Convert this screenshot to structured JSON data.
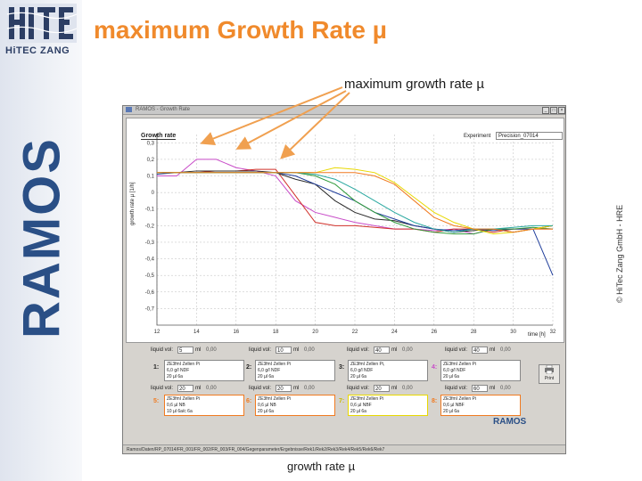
{
  "slide": {
    "title": "maximum Growth Rate µ",
    "annotation_top": "maximum growth rate µ",
    "annotation_bottom": "growth rate µ",
    "copyright": "© HiTec Zang GmbH - HRE",
    "logo_text": "HiTEC ZANG",
    "side_brand": "RAMOS",
    "title_color": "#f08a2c",
    "arrow_color": "#f0a050"
  },
  "app": {
    "window_title": "RAMOS - Growth Rate",
    "chart_tab_label": "Growth rate",
    "experiment_label": "Experiment",
    "experiment_value": "Precision_07014",
    "print_label": "Print",
    "app_logo": "RAMOS",
    "status_path": "Ramos/Daten/RP_07014/FR_001/FR_002/FR_003/FR_004/Gegenparameter/Ergebnisse/Rek1/Rek2/Rek3/Rek4/Rek5/Rek6/Rek7"
  },
  "controls": {
    "row1": [
      {
        "label": "liquid vol:",
        "value": "5",
        "unit": "ml",
        "num": "0,00"
      },
      {
        "label": "liquid vol:",
        "value": "10",
        "unit": "ml",
        "num": "0,00"
      },
      {
        "label": "liquid vol:",
        "value": "40",
        "unit": "ml",
        "num": "0,00"
      },
      {
        "label": "liquid vol:",
        "value": "40",
        "unit": "ml",
        "num": "0,00"
      }
    ],
    "row2": [
      {
        "label": "liquid vol:",
        "value": "20",
        "unit": "ml",
        "num": "0,00"
      },
      {
        "label": "liquid vol:",
        "value": "20",
        "unit": "ml",
        "num": "0,00"
      },
      {
        "label": "liquid vol:",
        "value": "20",
        "unit": "ml",
        "num": "0,00"
      },
      {
        "label": "liquid vol:",
        "value": "60",
        "unit": "ml",
        "num": "0,00"
      }
    ]
  },
  "cards": [
    {
      "idx": "1:",
      "color": "#1a1aa0",
      "lines": [
        "ZE3fmI Zellen Pi",
        "6,0 g/l NDF",
        "20 µl 6a"
      ]
    },
    {
      "idx": "2:",
      "color": "#1a1aa0",
      "lines": [
        "ZE3fmI Zellen Pi",
        "6,0 g/l NDF",
        "20 µl 6a"
      ]
    },
    {
      "idx": "3:",
      "color": "#1a1aa0",
      "lines": [
        "ZE3fmI Zellen Pi,",
        "6,0 g/l NDF",
        "20 µl 6a"
      ]
    },
    {
      "idx": "4:",
      "color": "#c84bc8",
      "lines": [
        "ZE3fmI Zellen Pi",
        "6,0 g/l NDF",
        "20 µl 6a"
      ]
    },
    {
      "idx": "5:",
      "color": "#f07a20",
      "lines": [
        "ZE3fmI Zellen Pi",
        "0,6 µl NB",
        "10 µl 6a/c 6a"
      ]
    },
    {
      "idx": "6:",
      "color": "#f07a20",
      "lines": [
        "ZE3fmI Zellen Pi",
        "0,6 µl NB",
        "20 µl 6a"
      ]
    },
    {
      "idx": "7:",
      "color": "#e8d800",
      "lines": [
        "ZE3fmI Zellen Pi",
        "0,6 µl NBF",
        "20 µl 6a"
      ]
    },
    {
      "idx": "8:",
      "color": "#f07a20",
      "lines": [
        "ZE3fmI Zellen Pi",
        "0,6 µl NBF",
        "20 µl 6a"
      ]
    }
  ],
  "chart_data": {
    "type": "line",
    "title": "",
    "xlabel": "time [h]",
    "ylabel": "growth rate µ [1/h]",
    "xlim": [
      12,
      32
    ],
    "ylim": [
      -0.8,
      0.35
    ],
    "xticks": [
      "12",
      "14",
      "16",
      "18",
      "20",
      "22",
      "24",
      "26",
      "28",
      "30",
      "32"
    ],
    "yticks": [
      "0,3",
      "0,2",
      "0,1",
      "0",
      "-0,1",
      "-0,2",
      "-0,3",
      "-0,4",
      "-0,5",
      "-0,6",
      "-0,7"
    ],
    "grid": true,
    "series": [
      {
        "color": "#c84bc8",
        "x": [
          12,
          13,
          14,
          15,
          16,
          17,
          18,
          19,
          20,
          21,
          22,
          23,
          24,
          25,
          26,
          27,
          28,
          29,
          30,
          31,
          32
        ],
        "y": [
          0.1,
          0.1,
          0.2,
          0.2,
          0.15,
          0.13,
          0.1,
          -0.05,
          -0.12,
          -0.15,
          -0.18,
          -0.2,
          -0.22,
          -0.22,
          -0.23,
          -0.22,
          -0.25,
          -0.22,
          -0.22,
          -0.22,
          -0.2
        ]
      },
      {
        "color": "#d0302a",
        "x": [
          12,
          13,
          14,
          15,
          16,
          17,
          18,
          19,
          20,
          21,
          22,
          23,
          24,
          25,
          26,
          27,
          28,
          29,
          30,
          31,
          32
        ],
        "y": [
          0.12,
          0.12,
          0.12,
          0.13,
          0.13,
          0.14,
          0.14,
          -0.02,
          -0.18,
          -0.2,
          -0.2,
          -0.21,
          -0.22,
          -0.22,
          -0.24,
          -0.22,
          -0.22,
          -0.24,
          -0.22,
          -0.22,
          -0.22
        ]
      },
      {
        "color": "#2a2a2a",
        "x": [
          12,
          13,
          14,
          15,
          16,
          17,
          18,
          19,
          20,
          21,
          22,
          23,
          24,
          25,
          26,
          27,
          28,
          29,
          30,
          31,
          32
        ],
        "y": [
          0.12,
          0.12,
          0.13,
          0.13,
          0.13,
          0.13,
          0.12,
          0.08,
          0.05,
          -0.05,
          -0.12,
          -0.16,
          -0.17,
          -0.2,
          -0.22,
          -0.24,
          -0.23,
          -0.22,
          -0.24,
          -0.22,
          -0.2
        ]
      },
      {
        "color": "#1e3c9a",
        "x": [
          12,
          13,
          14,
          15,
          16,
          17,
          18,
          19,
          20,
          21,
          22,
          23,
          24,
          25,
          26,
          27,
          28,
          29,
          30,
          31,
          32
        ],
        "y": [
          0.11,
          0.12,
          0.12,
          0.12,
          0.12,
          0.12,
          0.12,
          0.1,
          0.05,
          0.0,
          -0.05,
          -0.12,
          -0.16,
          -0.2,
          -0.22,
          -0.23,
          -0.22,
          -0.23,
          -0.22,
          -0.22,
          -0.5
        ]
      },
      {
        "color": "#2f9a3a",
        "x": [
          12,
          13,
          14,
          15,
          16,
          17,
          18,
          19,
          20,
          21,
          22,
          23,
          24,
          25,
          26,
          27,
          28,
          29,
          30,
          31,
          32
        ],
        "y": [
          0.12,
          0.12,
          0.12,
          0.12,
          0.12,
          0.12,
          0.12,
          0.12,
          0.1,
          0.05,
          -0.05,
          -0.12,
          -0.18,
          -0.22,
          -0.24,
          -0.25,
          -0.25,
          -0.22,
          -0.22,
          -0.21,
          -0.22
        ]
      },
      {
        "color": "#e8d800",
        "x": [
          12,
          13,
          14,
          15,
          16,
          17,
          18,
          19,
          20,
          21,
          22,
          23,
          24,
          25,
          26,
          27,
          28,
          29,
          30,
          31,
          32
        ],
        "y": [
          0.12,
          0.12,
          0.12,
          0.12,
          0.12,
          0.12,
          0.12,
          0.12,
          0.12,
          0.15,
          0.14,
          0.12,
          0.06,
          -0.03,
          -0.12,
          -0.18,
          -0.22,
          -0.25,
          -0.24,
          -0.22,
          -0.2
        ]
      },
      {
        "color": "#2aa8a0",
        "x": [
          12,
          13,
          14,
          15,
          16,
          17,
          18,
          19,
          20,
          21,
          22,
          23,
          24,
          25,
          26,
          27,
          28,
          29,
          30,
          31,
          32
        ],
        "y": [
          0.12,
          0.12,
          0.12,
          0.12,
          0.12,
          0.12,
          0.12,
          0.12,
          0.11,
          0.08,
          0.02,
          -0.05,
          -0.12,
          -0.18,
          -0.22,
          -0.24,
          -0.22,
          -0.22,
          -0.21,
          -0.2,
          -0.2
        ]
      },
      {
        "color": "#f07a20",
        "x": [
          12,
          13,
          14,
          15,
          16,
          17,
          18,
          19,
          20,
          21,
          22,
          23,
          24,
          25,
          26,
          27,
          28,
          29,
          30,
          31,
          32
        ],
        "y": [
          0.12,
          0.12,
          0.12,
          0.12,
          0.12,
          0.12,
          0.12,
          0.12,
          0.12,
          0.12,
          0.12,
          0.1,
          0.05,
          -0.05,
          -0.15,
          -0.2,
          -0.22,
          -0.22,
          -0.24,
          -0.22,
          -0.22
        ]
      }
    ]
  }
}
